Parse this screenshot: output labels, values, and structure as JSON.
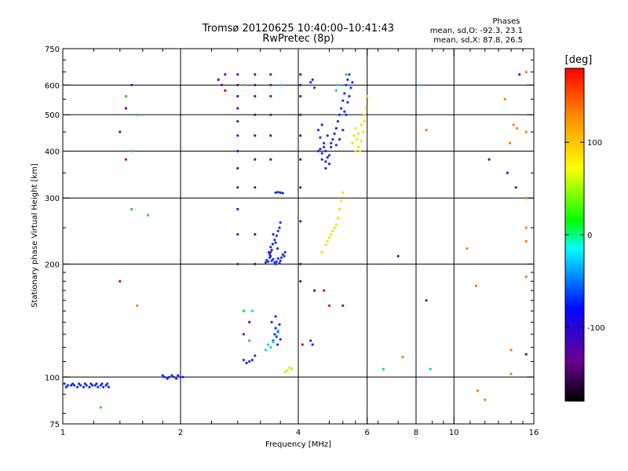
{
  "chart_data": {
    "type": "scatter",
    "title": "Tromsø 20120625 10:40:00–10:41:43",
    "subtitle": "RwPretec (8p)",
    "stats_title": "Phases",
    "stats_line1": "mean, sd,O: -92.3, 23.1",
    "stats_line2": "mean, sd,X:  87.8, 26.5",
    "xlabel": "Frequency [MHz]",
    "ylabel": "Stationary phase Virtual Height [km]",
    "x_scale": "log",
    "y_scale": "log",
    "xlim": [
      1,
      16
    ],
    "ylim": [
      75,
      750
    ],
    "x_ticks": [
      1,
      2,
      4,
      6,
      8,
      10,
      16
    ],
    "x_minor_ticks": [
      1.2,
      1.4,
      1.6,
      1.8,
      2.4,
      2.8,
      3.2,
      3.6,
      4.8,
      5.2,
      5.6,
      6.4,
      7.2,
      8.8,
      9.4,
      11,
      12,
      13,
      14,
      15
    ],
    "y_ticks": [
      75,
      100,
      200,
      300,
      400,
      500,
      600,
      750
    ],
    "y_minor_ticks": [
      80,
      90,
      110,
      120,
      130,
      140,
      150,
      160,
      170,
      180,
      190,
      250,
      350,
      450,
      550,
      650,
      700
    ],
    "v_grid": [
      2,
      4,
      6,
      8,
      10
    ],
    "h_grid": [
      100,
      200,
      300,
      400,
      500,
      600
    ],
    "grid": true,
    "colorbar": {
      "label": "[deg]",
      "range": [
        -180,
        180
      ],
      "ticks": [
        100,
        0,
        -100
      ]
    },
    "series": [
      {
        "color": "#1c2cf0",
        "points": [
          [
            1.01,
            96
          ],
          [
            1.03,
            95
          ],
          [
            1.05,
            95
          ],
          [
            1.07,
            95
          ],
          [
            1.09,
            94
          ],
          [
            1.11,
            95
          ],
          [
            1.13,
            94
          ],
          [
            1.15,
            95
          ],
          [
            1.17,
            94
          ],
          [
            1.19,
            95
          ],
          [
            1.21,
            95
          ],
          [
            1.23,
            94
          ],
          [
            1.25,
            95
          ],
          [
            1.27,
            94
          ],
          [
            1.29,
            95
          ],
          [
            1.31,
            94
          ],
          [
            1.02,
            94
          ],
          [
            1.06,
            96
          ],
          [
            1.1,
            96
          ],
          [
            1.14,
            96
          ],
          [
            1.18,
            96
          ],
          [
            1.22,
            96
          ],
          [
            1.26,
            96
          ],
          [
            1.3,
            96
          ],
          [
            1.8,
            101
          ],
          [
            1.82,
            100
          ],
          [
            1.85,
            99
          ],
          [
            1.87,
            100
          ],
          [
            1.9,
            101
          ],
          [
            1.92,
            100
          ],
          [
            1.95,
            99
          ],
          [
            1.97,
            101
          ],
          [
            2.0,
            100
          ],
          [
            2.03,
            100
          ],
          [
            2.9,
            111
          ],
          [
            2.95,
            109
          ],
          [
            3.0,
            110
          ],
          [
            3.05,
            111
          ],
          [
            3.1,
            114
          ],
          [
            3.3,
            202
          ],
          [
            3.32,
            205
          ],
          [
            3.35,
            203
          ],
          [
            3.38,
            208
          ],
          [
            3.4,
            210
          ],
          [
            3.42,
            204
          ],
          [
            3.45,
            206
          ],
          [
            3.48,
            202
          ],
          [
            3.5,
            200
          ],
          [
            3.52,
            203
          ],
          [
            3.55,
            207
          ],
          [
            3.58,
            201
          ],
          [
            3.6,
            204
          ],
          [
            3.62,
            208
          ],
          [
            3.65,
            212
          ],
          [
            3.68,
            210
          ],
          [
            3.7,
            215
          ],
          [
            3.36,
            215
          ],
          [
            3.4,
            222
          ],
          [
            3.44,
            226
          ],
          [
            3.48,
            232
          ],
          [
            3.52,
            238
          ],
          [
            3.55,
            245
          ],
          [
            3.58,
            250
          ],
          [
            3.6,
            258
          ],
          [
            3.45,
            240
          ],
          [
            3.5,
            228
          ],
          [
            3.54,
            220
          ],
          [
            3.42,
            218
          ],
          [
            3.38,
            212
          ],
          [
            3.5,
            310
          ],
          [
            3.55,
            311
          ],
          [
            3.6,
            310
          ],
          [
            3.65,
            309
          ],
          [
            3.45,
            125
          ],
          [
            3.48,
            130
          ],
          [
            3.5,
            135
          ],
          [
            3.52,
            128
          ],
          [
            3.55,
            132
          ],
          [
            3.58,
            138
          ],
          [
            3.6,
            126
          ],
          [
            3.42,
            140
          ],
          [
            3.5,
            145
          ],
          [
            3.54,
            122
          ],
          [
            4.5,
            400
          ],
          [
            4.55,
            405
          ],
          [
            4.6,
            395
          ],
          [
            4.65,
            410
          ],
          [
            4.7,
            400
          ],
          [
            4.75,
            385
          ],
          [
            4.8,
            390
          ],
          [
            4.85,
            420
          ],
          [
            4.9,
            430
          ],
          [
            4.95,
            445
          ],
          [
            5.0,
            460
          ],
          [
            5.05,
            480
          ],
          [
            5.1,
            500
          ],
          [
            5.15,
            520
          ],
          [
            5.2,
            545
          ],
          [
            5.25,
            570
          ],
          [
            5.3,
            600
          ],
          [
            5.35,
            620
          ],
          [
            5.4,
            640
          ],
          [
            4.6,
            380
          ],
          [
            4.7,
            375
          ],
          [
            4.8,
            370
          ],
          [
            4.7,
            360
          ],
          [
            4.65,
            420
          ],
          [
            4.55,
            435
          ],
          [
            4.5,
            455
          ],
          [
            4.6,
            470
          ],
          [
            4.75,
            440
          ],
          [
            4.85,
            410
          ],
          [
            5.0,
            415
          ],
          [
            5.1,
            430
          ],
          [
            5.2,
            455
          ],
          [
            5.3,
            500
          ],
          [
            5.4,
            560
          ],
          [
            5.5,
            610
          ],
          [
            5.45,
            590
          ],
          [
            5.35,
            540
          ],
          [
            5.25,
            510
          ],
          [
            4.3,
            610
          ],
          [
            4.35,
            620
          ],
          [
            4.4,
            590
          ],
          [
            4.3,
            125
          ],
          [
            4.35,
            122
          ]
        ]
      },
      {
        "color": "#e6e600",
        "points": [
          [
            5.5,
            420
          ],
          [
            5.55,
            440
          ],
          [
            5.6,
            460
          ],
          [
            5.65,
            430
          ],
          [
            5.7,
            410
          ],
          [
            5.75,
            400
          ],
          [
            5.8,
            425
          ],
          [
            5.85,
            450
          ],
          [
            5.9,
            480
          ],
          [
            5.95,
            520
          ],
          [
            6.0,
            560
          ],
          [
            5.6,
            400
          ],
          [
            5.7,
            445
          ],
          [
            5.8,
            470
          ],
          [
            5.9,
            500
          ],
          [
            4.6,
            215
          ],
          [
            4.7,
            225
          ],
          [
            4.8,
            235
          ],
          [
            4.9,
            245
          ],
          [
            5.0,
            255
          ],
          [
            5.05,
            265
          ],
          [
            5.1,
            280
          ],
          [
            5.15,
            295
          ],
          [
            5.2,
            310
          ],
          [
            4.75,
            230
          ],
          [
            4.85,
            240
          ],
          [
            4.95,
            250
          ],
          [
            3.7,
            103
          ],
          [
            3.75,
            104
          ],
          [
            3.8,
            106
          ],
          [
            3.85,
            105
          ]
        ]
      },
      {
        "color": "#00d2e6",
        "points": [
          [
            3.3,
            118
          ],
          [
            3.35,
            122
          ],
          [
            3.4,
            120
          ],
          [
            3.45,
            124
          ],
          [
            3.5,
            129
          ],
          [
            3.55,
            133
          ],
          [
            5.0,
            580
          ],
          [
            5.05,
            600
          ],
          [
            6.6,
            105
          ],
          [
            8.7,
            105
          ],
          [
            3.05,
            150
          ],
          [
            3.6,
            600
          ],
          [
            8.2,
            600
          ]
        ]
      },
      {
        "color": "#28d228",
        "points": [
          [
            1.45,
            560
          ],
          [
            1.5,
            400
          ],
          [
            1.55,
            500
          ],
          [
            1.25,
            83
          ],
          [
            2.9,
            150
          ],
          [
            3.0,
            125
          ],
          [
            2.9,
            600
          ],
          [
            1.65,
            270
          ],
          [
            5.3,
            640
          ],
          [
            1.5,
            280
          ]
        ]
      },
      {
        "color": "#ff7a00",
        "points": [
          [
            1.55,
            155
          ],
          [
            7.4,
            113
          ],
          [
            8.5,
            455
          ],
          [
            11.5,
            92
          ],
          [
            12.0,
            87
          ],
          [
            14.0,
            102
          ],
          [
            14.0,
            118
          ],
          [
            15.3,
            185
          ],
          [
            11.4,
            175
          ],
          [
            15.3,
            450
          ],
          [
            15.3,
            300
          ],
          [
            15.3,
            230
          ],
          [
            15.3,
            650
          ],
          [
            15.3,
            250
          ],
          [
            14.5,
            460
          ],
          [
            13.5,
            550
          ],
          [
            10.8,
            220
          ],
          [
            14.2,
            470
          ],
          [
            13.9,
            420
          ]
        ]
      },
      {
        "color": "#e10000",
        "points": [
          [
            1.4,
            180
          ],
          [
            1.45,
            380
          ],
          [
            4.8,
            155
          ],
          [
            4.65,
            170
          ],
          [
            4.1,
            122
          ],
          [
            3.4,
            215
          ],
          [
            2.6,
            580
          ]
        ]
      },
      {
        "color": "#6e00a0",
        "points": [
          [
            2.5,
            620
          ],
          [
            2.55,
            600
          ],
          [
            2.6,
            640
          ],
          [
            2.8,
            640
          ],
          [
            2.8,
            600
          ],
          [
            2.8,
            560
          ],
          [
            2.8,
            520
          ],
          [
            2.8,
            480
          ],
          [
            2.8,
            440
          ],
          [
            2.8,
            400
          ],
          [
            2.8,
            360
          ],
          [
            2.8,
            320
          ],
          [
            2.8,
            280
          ],
          [
            2.8,
            240
          ],
          [
            2.8,
            200
          ],
          [
            3.1,
            640
          ],
          [
            3.1,
            600
          ],
          [
            3.1,
            560
          ],
          [
            3.1,
            500
          ],
          [
            3.1,
            440
          ],
          [
            3.1,
            380
          ],
          [
            3.1,
            320
          ],
          [
            3.1,
            240
          ],
          [
            3.1,
            200
          ],
          [
            3.4,
            640
          ],
          [
            3.4,
            600
          ],
          [
            3.4,
            560
          ],
          [
            3.4,
            500
          ],
          [
            3.4,
            440
          ],
          [
            3.4,
            380
          ],
          [
            4.05,
            640
          ],
          [
            4.05,
            600
          ],
          [
            4.05,
            560
          ],
          [
            4.05,
            500
          ],
          [
            4.05,
            440
          ],
          [
            4.05,
            380
          ],
          [
            4.05,
            320
          ],
          [
            4.05,
            260
          ],
          [
            4.05,
            200
          ],
          [
            4.05,
            180
          ],
          [
            1.4,
            450
          ],
          [
            1.45,
            520
          ],
          [
            1.5,
            600
          ],
          [
            2.9,
            130
          ],
          [
            3.0,
            140
          ],
          [
            4.4,
            170
          ],
          [
            5.2,
            155
          ],
          [
            7.2,
            210
          ],
          [
            8.5,
            160
          ],
          [
            12.3,
            380
          ],
          [
            13.7,
            350
          ],
          [
            14.4,
            320
          ],
          [
            14.7,
            640
          ],
          [
            15.3,
            115
          ]
        ]
      }
    ]
  }
}
